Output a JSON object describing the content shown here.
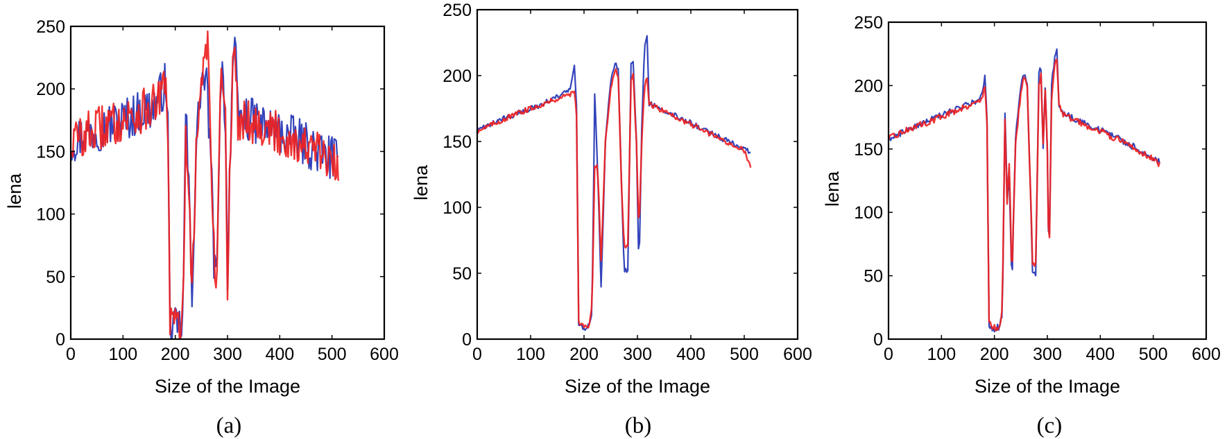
{
  "figure": {
    "captions": [
      "(a)",
      "(b)",
      "(c)"
    ]
  },
  "colors": {
    "original": "#3344bb",
    "reconstructed": "#ee2222"
  },
  "chart_data": [
    {
      "type": "line",
      "xlabel": "Size of the Image",
      "ylabel": "lena",
      "xlim": [
        0,
        600
      ],
      "ylim": [
        0,
        250
      ],
      "xticks": [
        "0",
        "100",
        "200",
        "300",
        "400",
        "500",
        "600"
      ],
      "yticks": [
        "0",
        "50",
        "100",
        "150",
        "200",
        "250"
      ],
      "noise": 36,
      "series": [
        {
          "values": [
            [
              0,
              158
            ],
            [
              40,
              166
            ],
            [
              80,
              172
            ],
            [
              120,
              179
            ],
            [
              160,
              186
            ],
            [
              182,
              205
            ],
            [
              186,
              170
            ],
            [
              190,
              10
            ],
            [
              200,
              7
            ],
            [
              208,
              9
            ],
            [
              215,
              12
            ],
            [
              220,
              185
            ],
            [
              225,
              130
            ],
            [
              232,
              38
            ],
            [
              240,
              150
            ],
            [
              248,
              200
            ],
            [
              255,
              210
            ],
            [
              262,
              195
            ],
            [
              270,
              120
            ],
            [
              275,
              52
            ],
            [
              280,
              52
            ],
            [
              286,
              205
            ],
            [
              290,
              212
            ],
            [
              296,
              180
            ],
            [
              300,
              50
            ],
            [
              305,
              150
            ],
            [
              310,
              220
            ],
            [
              315,
              228
            ],
            [
              320,
              175
            ],
            [
              330,
              178
            ],
            [
              360,
              172
            ],
            [
              400,
              165
            ],
            [
              440,
              158
            ],
            [
              480,
              148
            ],
            [
              500,
              145
            ],
            [
              512,
              140
            ]
          ]
        },
        {
          "values": [
            [
              0,
              158
            ],
            [
              40,
              166
            ],
            [
              80,
              172
            ],
            [
              120,
              179
            ],
            [
              160,
              186
            ],
            [
              182,
              200
            ],
            [
              186,
              170
            ],
            [
              190,
              15
            ],
            [
              200,
              10
            ],
            [
              208,
              12
            ],
            [
              215,
              15
            ],
            [
              220,
              175
            ],
            [
              225,
              130
            ],
            [
              232,
              40
            ],
            [
              240,
              150
            ],
            [
              248,
              190
            ],
            [
              255,
              230
            ],
            [
              262,
              238
            ],
            [
              270,
              120
            ],
            [
              275,
              55
            ],
            [
              280,
              55
            ],
            [
              286,
              200
            ],
            [
              290,
              210
            ],
            [
              296,
              175
            ],
            [
              300,
              40
            ],
            [
              305,
              145
            ],
            [
              310,
              215
            ],
            [
              315,
              225
            ],
            [
              320,
              175
            ],
            [
              330,
              178
            ],
            [
              360,
              172
            ],
            [
              400,
              163
            ],
            [
              440,
              156
            ],
            [
              480,
              147
            ],
            [
              500,
              140
            ],
            [
              512,
              135
            ]
          ]
        }
      ]
    },
    {
      "type": "line",
      "xlabel": "Size of the Image",
      "ylabel": "lena",
      "xlim": [
        0,
        600
      ],
      "ylim": [
        0,
        250
      ],
      "xticks": [
        "0",
        "100",
        "200",
        "300",
        "400",
        "500",
        "600"
      ],
      "yticks": [
        "0",
        "50",
        "100",
        "150",
        "200",
        "250"
      ],
      "noise": 4,
      "series": [
        {
          "values": [
            [
              0,
              158
            ],
            [
              40,
              166
            ],
            [
              80,
              172
            ],
            [
              120,
              178
            ],
            [
              160,
              186
            ],
            [
              175,
              190
            ],
            [
              182,
              208
            ],
            [
              186,
              175
            ],
            [
              190,
              10
            ],
            [
              200,
              8
            ],
            [
              210,
              10
            ],
            [
              215,
              20
            ],
            [
              220,
              185
            ],
            [
              225,
              135
            ],
            [
              232,
              38
            ],
            [
              240,
              150
            ],
            [
              250,
              195
            ],
            [
              258,
              210
            ],
            [
              264,
              205
            ],
            [
              270,
              120
            ],
            [
              275,
              52
            ],
            [
              282,
              52
            ],
            [
              288,
              210
            ],
            [
              292,
              212
            ],
            [
              298,
              150
            ],
            [
              303,
              50
            ],
            [
              308,
              160
            ],
            [
              313,
              220
            ],
            [
              318,
              230
            ],
            [
              322,
              178
            ],
            [
              330,
              178
            ],
            [
              360,
              172
            ],
            [
              400,
              164
            ],
            [
              440,
              156
            ],
            [
              480,
              148
            ],
            [
              500,
              145
            ],
            [
              512,
              142
            ]
          ]
        },
        {
          "values": [
            [
              0,
              158
            ],
            [
              40,
              165
            ],
            [
              80,
              172
            ],
            [
              120,
              178
            ],
            [
              160,
              184
            ],
            [
              175,
              186
            ],
            [
              182,
              190
            ],
            [
              186,
              170
            ],
            [
              190,
              12
            ],
            [
              200,
              9
            ],
            [
              210,
              10
            ],
            [
              215,
              25
            ],
            [
              220,
              130
            ],
            [
              225,
              135
            ],
            [
              232,
              60
            ],
            [
              240,
              150
            ],
            [
              250,
              190
            ],
            [
              258,
              205
            ],
            [
              264,
              200
            ],
            [
              270,
              120
            ],
            [
              275,
              70
            ],
            [
              282,
              70
            ],
            [
              288,
              195
            ],
            [
              292,
              200
            ],
            [
              298,
              150
            ],
            [
              303,
              80
            ],
            [
              308,
              150
            ],
            [
              313,
              190
            ],
            [
              318,
              198
            ],
            [
              322,
              178
            ],
            [
              330,
              177
            ],
            [
              360,
              171
            ],
            [
              400,
              163
            ],
            [
              440,
              155
            ],
            [
              480,
              147
            ],
            [
              500,
              143
            ],
            [
              512,
              132
            ]
          ]
        }
      ]
    },
    {
      "type": "line",
      "xlabel": "Size of the Image",
      "ylabel": "lena",
      "xlim": [
        0,
        600
      ],
      "ylim": [
        0,
        250
      ],
      "xticks": [
        "0",
        "100",
        "200",
        "300",
        "400",
        "500",
        "600"
      ],
      "yticks": [
        "0",
        "50",
        "100",
        "150",
        "200",
        "250"
      ],
      "noise": 5,
      "series": [
        {
          "values": [
            [
              0,
              158
            ],
            [
              40,
              166
            ],
            [
              80,
              173
            ],
            [
              120,
              180
            ],
            [
              160,
              187
            ],
            [
              175,
              190
            ],
            [
              182,
              207
            ],
            [
              186,
              175
            ],
            [
              190,
              10
            ],
            [
              200,
              8
            ],
            [
              210,
              10
            ],
            [
              215,
              20
            ],
            [
              220,
              180
            ],
            [
              224,
              110
            ],
            [
              228,
              130
            ],
            [
              233,
              40
            ],
            [
              240,
              160
            ],
            [
              250,
              200
            ],
            [
              256,
              210
            ],
            [
              262,
              200
            ],
            [
              268,
              120
            ],
            [
              272,
              52
            ],
            [
              278,
              52
            ],
            [
              284,
              210
            ],
            [
              288,
              213
            ],
            [
              292,
              150
            ],
            [
              296,
              200
            ],
            [
              300,
              150
            ],
            [
              303,
              50
            ],
            [
              308,
              200
            ],
            [
              313,
              220
            ],
            [
              318,
              230
            ],
            [
              322,
              185
            ],
            [
              330,
              178
            ],
            [
              360,
              172
            ],
            [
              400,
              165
            ],
            [
              440,
              157
            ],
            [
              480,
              148
            ],
            [
              500,
              143
            ],
            [
              512,
              140
            ]
          ]
        },
        {
          "values": [
            [
              0,
              158
            ],
            [
              40,
              166
            ],
            [
              80,
              172
            ],
            [
              120,
              179
            ],
            [
              160,
              186
            ],
            [
              175,
              188
            ],
            [
              182,
              200
            ],
            [
              186,
              170
            ],
            [
              190,
              12
            ],
            [
              200,
              9
            ],
            [
              210,
              10
            ],
            [
              215,
              25
            ],
            [
              220,
              175
            ],
            [
              224,
              105
            ],
            [
              228,
              140
            ],
            [
              233,
              45
            ],
            [
              240,
              155
            ],
            [
              250,
              195
            ],
            [
              256,
              208
            ],
            [
              262,
              198
            ],
            [
              268,
              120
            ],
            [
              272,
              60
            ],
            [
              278,
              60
            ],
            [
              284,
              200
            ],
            [
              288,
              208
            ],
            [
              292,
              155
            ],
            [
              296,
              195
            ],
            [
              300,
              150
            ],
            [
              303,
              55
            ],
            [
              308,
              190
            ],
            [
              313,
              215
            ],
            [
              318,
              222
            ],
            [
              322,
              185
            ],
            [
              330,
              177
            ],
            [
              360,
              171
            ],
            [
              400,
              164
            ],
            [
              440,
              156
            ],
            [
              480,
              147
            ],
            [
              500,
              142
            ],
            [
              512,
              138
            ]
          ]
        }
      ]
    }
  ]
}
